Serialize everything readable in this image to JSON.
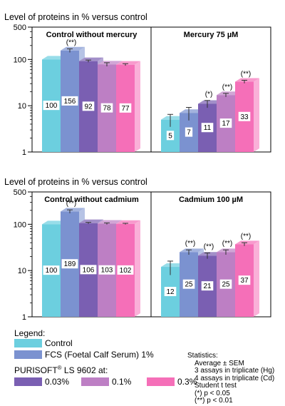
{
  "chart_data": [
    {
      "type": "bar",
      "title": "Level of proteins in % versus control",
      "scale": "log",
      "ylim": [
        1,
        500
      ],
      "yticks": [
        "1",
        "10",
        "100",
        "500"
      ],
      "panels": [
        {
          "label": "Control without mercury",
          "values": [
            100,
            156,
            92,
            78,
            77
          ],
          "value_labels": [
            "100",
            "156",
            "92",
            "78",
            "77"
          ],
          "errors": [
            0,
            14,
            5,
            7,
            4
          ],
          "significance": [
            "",
            "(**)",
            "",
            "",
            ""
          ]
        },
        {
          "label": "Mercury 75 µM",
          "values": [
            5,
            7,
            11,
            17,
            33
          ],
          "value_labels": [
            "5",
            "7",
            "11",
            "17",
            "33"
          ],
          "errors": [
            1.5,
            2.2,
            2,
            1.5,
            2.5
          ],
          "significance": [
            "",
            "",
            "(*)",
            "(**)",
            "(**)"
          ]
        }
      ]
    },
    {
      "type": "bar",
      "title": "Level of proteins in % versus control",
      "scale": "log",
      "ylim": [
        1,
        500
      ],
      "yticks": [
        "1",
        "10",
        "100",
        "500"
      ],
      "panels": [
        {
          "label": "Control without cadmium",
          "values": [
            100,
            189,
            106,
            103,
            102
          ],
          "value_labels": [
            "100",
            "189",
            "106",
            "103",
            "102"
          ],
          "errors": [
            0,
            16,
            4,
            4,
            3
          ],
          "significance": [
            "",
            "(**)",
            "",
            "",
            ""
          ]
        },
        {
          "label": "Cadmium 100 µM",
          "values": [
            12,
            25,
            21,
            25,
            37
          ],
          "value_labels": [
            "12",
            "25",
            "21",
            "25",
            "37"
          ],
          "errors": [
            4,
            3,
            3,
            3,
            3
          ],
          "significance": [
            "",
            "(**)",
            "(**)",
            "(**)",
            "(**)"
          ]
        }
      ]
    }
  ],
  "colors": {
    "control": "#6ccfdf",
    "fcs": "#7b92d0",
    "c003": "#7a5fb2",
    "c01": "#bd7fc4",
    "c03": "#f56fb8"
  },
  "legend": {
    "heading": "Legend:",
    "control": "Control",
    "fcs": "FCS (Foetal Calf Serum) 1%",
    "purisoft_prefix": "PURISOFT",
    "purisoft_sup": "®",
    "purisoft_suffix": " LS 9602 at:",
    "c003": "0.03%",
    "c01": "0.1%",
    "c03": "0.3%"
  },
  "statistics": {
    "title": "Statistics:",
    "lines": [
      "Average ± SEM",
      "3 assays in triplicate (Hg)",
      "4 assays in triplicate (Cd)",
      "Student t test",
      "(*) p < 0.05",
      "(**) p < 0.01"
    ]
  }
}
